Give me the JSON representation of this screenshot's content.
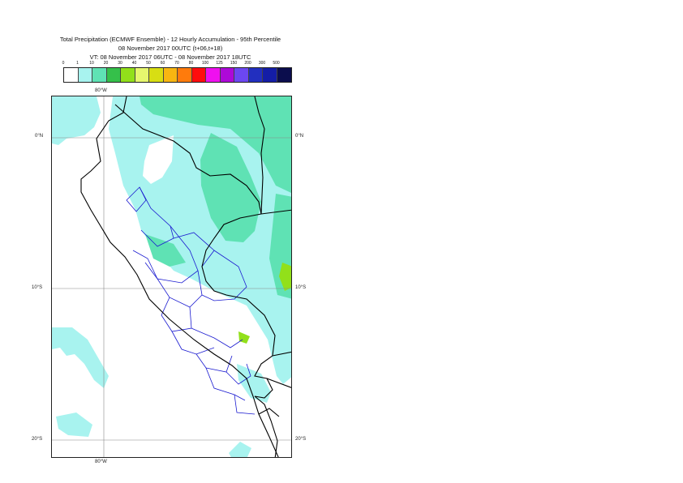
{
  "title": {
    "line1": "Total Precipitation (ECMWF Ensemble) - 12 Hourly Accumulation - 95th Percentile",
    "line2": "08 November 2017 00UTC (t+06,t+18)",
    "line3": "VT: 08 November 2017 06UTC - 08 November 2017 18UTC"
  },
  "colorbar": {
    "levels": [
      "0",
      "1",
      "10",
      "20",
      "30",
      "40",
      "50",
      "60",
      "70",
      "80",
      "100",
      "125",
      "150",
      "200",
      "300",
      "500"
    ],
    "colors": [
      "#ffffff",
      "#a8f3ef",
      "#5fe2b4",
      "#35c04a",
      "#92e01a",
      "#e6f76e",
      "#d8de13",
      "#f8b611",
      "#ff7b0c",
      "#ff0d0d",
      "#ef10ef",
      "#ad09d8",
      "#6c47f1",
      "#222fbf",
      "#141da6",
      "#0b0d4d"
    ]
  },
  "map": {
    "lat_labels": [
      "0°N",
      "10°S",
      "20°S"
    ],
    "lon_labels": [
      "80°W"
    ],
    "country_border_color": "#000000",
    "region_border_color": "#1a1ad0"
  }
}
